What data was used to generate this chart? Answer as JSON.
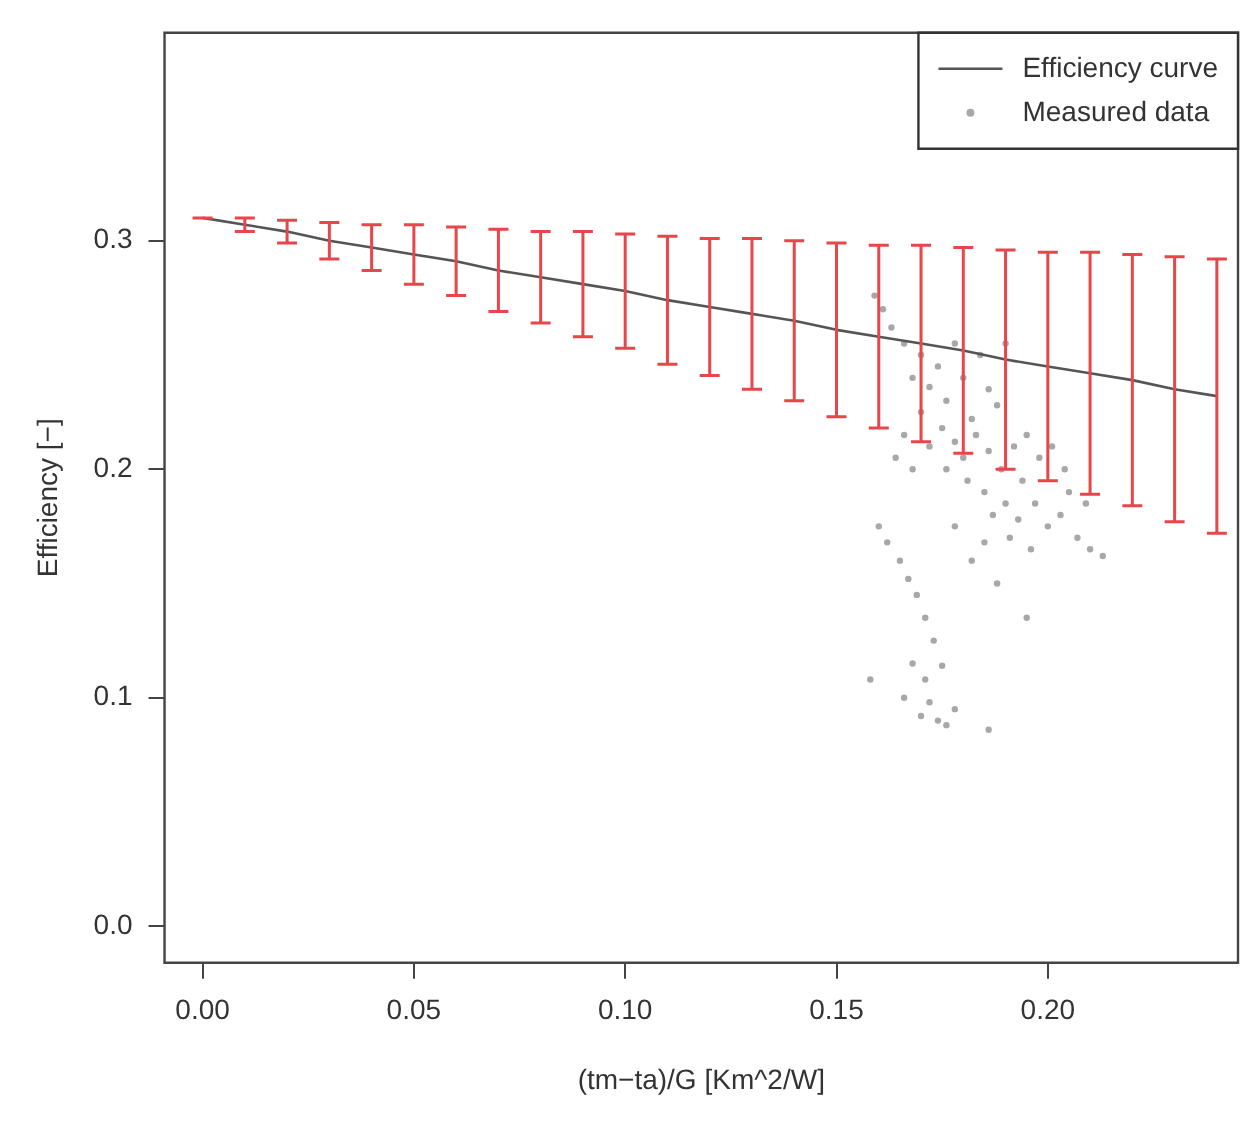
{
  "chart_data": {
    "type": "scatter",
    "xlabel": "(tm−ta)/G [Km^2/W]",
    "ylabel": "Efficiency [−]",
    "xlim": [
      -0.009,
      0.245
    ],
    "ylim": [
      -0.016,
      0.391
    ],
    "xticks": [
      {
        "value": 0,
        "label": "0.00"
      },
      {
        "value": 0.05,
        "label": "0.05"
      },
      {
        "value": 0.1,
        "label": "0.10"
      },
      {
        "value": 0.15,
        "label": "0.15"
      },
      {
        "value": 0.2,
        "label": "0.20"
      }
    ],
    "yticks": [
      {
        "value": 0,
        "label": "0.0"
      },
      {
        "value": 0.1,
        "label": "0.1"
      },
      {
        "value": 0.2,
        "label": "0.2"
      },
      {
        "value": 0.3,
        "label": "0.3"
      }
    ],
    "grid": false,
    "legend": "top right",
    "series": [
      {
        "name": "Efficiency curve",
        "type": "line",
        "marker": "none",
        "color": "#555555",
        "x": [
          0,
          0.01,
          0.02,
          0.03,
          0.04,
          0.05,
          0.06,
          0.07,
          0.08,
          0.09,
          0.1,
          0.11,
          0.12,
          0.13,
          0.14,
          0.15,
          0.16,
          0.17,
          0.18,
          0.19,
          0.2,
          0.21,
          0.22,
          0.23,
          0.24
        ],
        "values": [
          0.31,
          0.307,
          0.304,
          0.3,
          0.297,
          0.294,
          0.291,
          0.287,
          0.284,
          0.281,
          0.278,
          0.274,
          0.271,
          0.268,
          0.265,
          0.261,
          0.258,
          0.255,
          0.252,
          0.248,
          0.245,
          0.242,
          0.239,
          0.235,
          0.232
        ],
        "errors": [
          0,
          0.003,
          0.005,
          0.008,
          0.01,
          0.013,
          0.015,
          0.018,
          0.02,
          0.023,
          0.025,
          0.028,
          0.03,
          0.033,
          0.035,
          0.038,
          0.04,
          0.043,
          0.045,
          0.048,
          0.05,
          0.053,
          0.055,
          0.058,
          0.06
        ]
      },
      {
        "name": "Measured data",
        "marker": "circle",
        "color": "#a8a8a8",
        "x": [
          0.159,
          0.161,
          0.163,
          0.166,
          0.168,
          0.17,
          0.172,
          0.174,
          0.176,
          0.178,
          0.18,
          0.182,
          0.184,
          0.186,
          0.188,
          0.19,
          0.175,
          0.178,
          0.18,
          0.183,
          0.186,
          0.17,
          0.166,
          0.164,
          0.168,
          0.172,
          0.176,
          0.181,
          0.185,
          0.189,
          0.192,
          0.195,
          0.198,
          0.201,
          0.204,
          0.194,
          0.19,
          0.187,
          0.193,
          0.197,
          0.2,
          0.203,
          0.207,
          0.21,
          0.213,
          0.196,
          0.191,
          0.185,
          0.178,
          0.182,
          0.188,
          0.195,
          0.205,
          0.209,
          0.16,
          0.162,
          0.165,
          0.167,
          0.169,
          0.171,
          0.173,
          0.168,
          0.171,
          0.175,
          0.158,
          0.166,
          0.17,
          0.174,
          0.178,
          0.176,
          0.186,
          0.172
        ],
        "values": [
          0.276,
          0.27,
          0.262,
          0.255,
          0.24,
          0.25,
          0.236,
          0.245,
          0.23,
          0.255,
          0.24,
          0.222,
          0.25,
          0.235,
          0.228,
          0.255,
          0.218,
          0.212,
          0.205,
          0.215,
          0.208,
          0.225,
          0.215,
          0.205,
          0.2,
          0.21,
          0.2,
          0.195,
          0.19,
          0.2,
          0.21,
          0.215,
          0.205,
          0.21,
          0.2,
          0.195,
          0.185,
          0.18,
          0.178,
          0.185,
          0.175,
          0.18,
          0.17,
          0.165,
          0.162,
          0.165,
          0.17,
          0.168,
          0.175,
          0.16,
          0.15,
          0.135,
          0.19,
          0.185,
          0.175,
          0.168,
          0.16,
          0.152,
          0.145,
          0.135,
          0.125,
          0.115,
          0.108,
          0.114,
          0.108,
          0.1,
          0.092,
          0.09,
          0.095,
          0.088,
          0.086,
          0.098
        ]
      }
    ]
  }
}
